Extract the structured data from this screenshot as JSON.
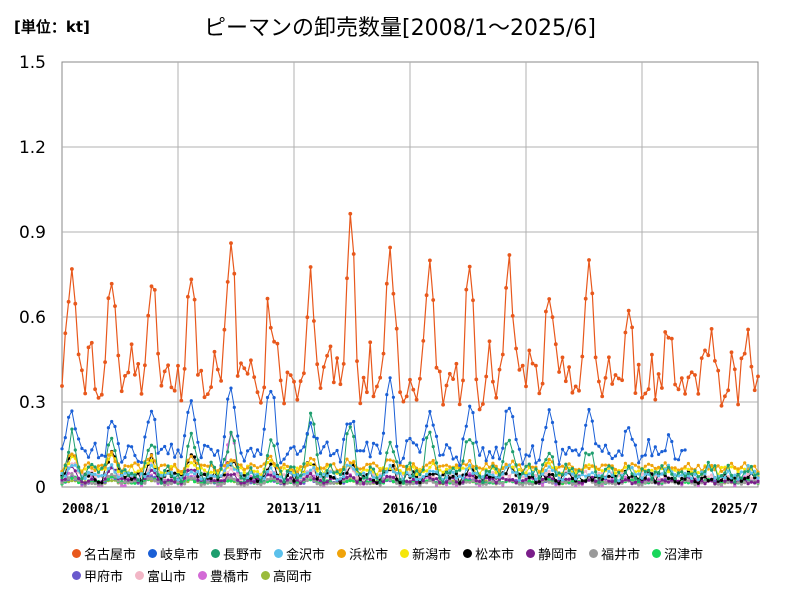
{
  "chart_data": {
    "type": "line",
    "title": "ピーマンの卸売数量[2008/1～2025/6]",
    "unit_label": "[単位：kt]",
    "x_ticks": [
      "2008/1",
      "2010/12",
      "2013/11",
      "2016/10",
      "2019/9",
      "2022/8",
      "2025/7"
    ],
    "y_ticks": [
      "0",
      "0.3",
      "0.6",
      "0.9",
      "1.2",
      "1.5"
    ],
    "ylim": [
      0,
      1.5
    ],
    "grid": true,
    "legend_position": "bottom",
    "series": [
      {
        "name": "名古屋市",
        "color": "#e8581c",
        "base": 0.46,
        "amp": 0.2,
        "peak": [
          0.88,
          0.85,
          0.89,
          0.87,
          0.92,
          0.75,
          0.82,
          1.01,
          0.92,
          0.81,
          0.87,
          0.84,
          0.7,
          0.82,
          0.65
        ]
      },
      {
        "name": "岐阜市",
        "color": "#1a5fd6",
        "base": 0.15,
        "amp": 0.08,
        "peak": [
          0.31,
          0.26,
          0.31,
          0.34,
          0.38,
          0.39,
          0.28,
          0.28,
          0.4,
          0.29,
          0.32,
          0.35,
          0.29,
          0.31,
          0.22
        ]
      },
      {
        "name": "長野市",
        "color": "#1e9e6e",
        "base": 0.07,
        "amp": 0.06,
        "peak": [
          0.21,
          0.22,
          0.18,
          0.22,
          0.2,
          0.2,
          0.28,
          0.25,
          0.21,
          0.22,
          0.2,
          0.2,
          0.17,
          0.16,
          0.11
        ]
      },
      {
        "name": "金沢市",
        "color": "#5bc0eb",
        "base": 0.05,
        "amp": 0.03,
        "peak": [
          0.09,
          0.09,
          0.08,
          0.08,
          0.09,
          0.08,
          0.08,
          0.09,
          0.08,
          0.08,
          0.08,
          0.08,
          0.08,
          0.07,
          0.08
        ]
      },
      {
        "name": "浜松市",
        "color": "#f0a30a",
        "base": 0.08,
        "amp": 0.03,
        "peak": [
          0.14,
          0.13,
          0.13,
          0.12,
          0.12,
          0.12,
          0.11,
          0.11,
          0.11,
          0.1,
          0.1,
          0.1,
          0.1,
          0.09,
          0.09
        ]
      },
      {
        "name": "新潟市",
        "color": "#f5e60a",
        "base": 0.07,
        "amp": 0.03,
        "peak": [
          0.12,
          0.12,
          0.11,
          0.11,
          0.1,
          0.11,
          0.1,
          0.1,
          0.09,
          0.09,
          0.09,
          0.09,
          0.09,
          0.08,
          0.08
        ]
      },
      {
        "name": "松本市",
        "color": "#000000",
        "base": 0.05,
        "amp": 0.04,
        "peak": [
          0.14,
          0.15,
          0.12,
          0.13,
          0.11,
          0.11,
          0.1,
          0.09,
          0.09,
          0.08,
          0.08,
          0.08,
          0.07,
          0.06,
          0.06
        ]
      },
      {
        "name": "静岡市",
        "color": "#7a1e8a",
        "base": 0.03,
        "amp": 0.02,
        "peak": [
          0.08,
          0.08,
          0.07,
          0.07,
          0.06,
          0.06,
          0.05,
          0.05,
          0.05,
          0.05,
          0.05,
          0.04,
          0.04,
          0.04,
          0.03
        ]
      },
      {
        "name": "福井市",
        "color": "#9a9a9a",
        "base": 0.02,
        "amp": 0.015,
        "peak": [
          0.05,
          0.05,
          0.04,
          0.04,
          0.04,
          0.04,
          0.04,
          0.04,
          0.04,
          0.03,
          0.03,
          0.03,
          0.03,
          0.03,
          0.03
        ]
      },
      {
        "name": "沼津市",
        "color": "#18d65a",
        "base": 0.02,
        "amp": 0.01,
        "peak": [
          0.04,
          0.04,
          0.04,
          0.03,
          0.03,
          0.03,
          0.03,
          0.03,
          0.03,
          0.03,
          0.03,
          0.03,
          0.03,
          0.03,
          0.03
        ]
      },
      {
        "name": "甲府市",
        "color": "#6a5acd",
        "base": 0.02,
        "amp": 0.01,
        "peak": [
          0.04,
          0.04,
          0.04,
          0.04,
          0.04,
          0.03,
          0.03,
          0.03,
          0.03,
          0.03,
          0.03,
          0.03,
          0.03,
          0.03,
          0.03
        ]
      },
      {
        "name": "富山市",
        "color": "#f2b6c6",
        "base": 0.05,
        "amp": 0.03,
        "peak": [
          0.1,
          0.09,
          0.09,
          0.08,
          0.08,
          0.08,
          0.07,
          0.07,
          0.07,
          0.06,
          0.06,
          0.06,
          0.06,
          0.06,
          0.05
        ]
      },
      {
        "name": "豊橋市",
        "color": "#d36ad6",
        "base": 0.03,
        "amp": 0.03,
        "peak": [
          0.06,
          0.06,
          0.06,
          0.06,
          0.2,
          0.07,
          0.06,
          0.06,
          0.05,
          0.05,
          0.05,
          0.05,
          0.05,
          0.05,
          0.05
        ]
      },
      {
        "name": "高岡市",
        "color": "#9bbb3c",
        "base": 0.02,
        "amp": 0.01,
        "peak": [
          0.03,
          0.03,
          0.03,
          0.03,
          0.03,
          0.03,
          0.03,
          0.03,
          0.03,
          0.03,
          0.03,
          0.03,
          0.03,
          0.03,
          0.03
        ]
      }
    ]
  }
}
